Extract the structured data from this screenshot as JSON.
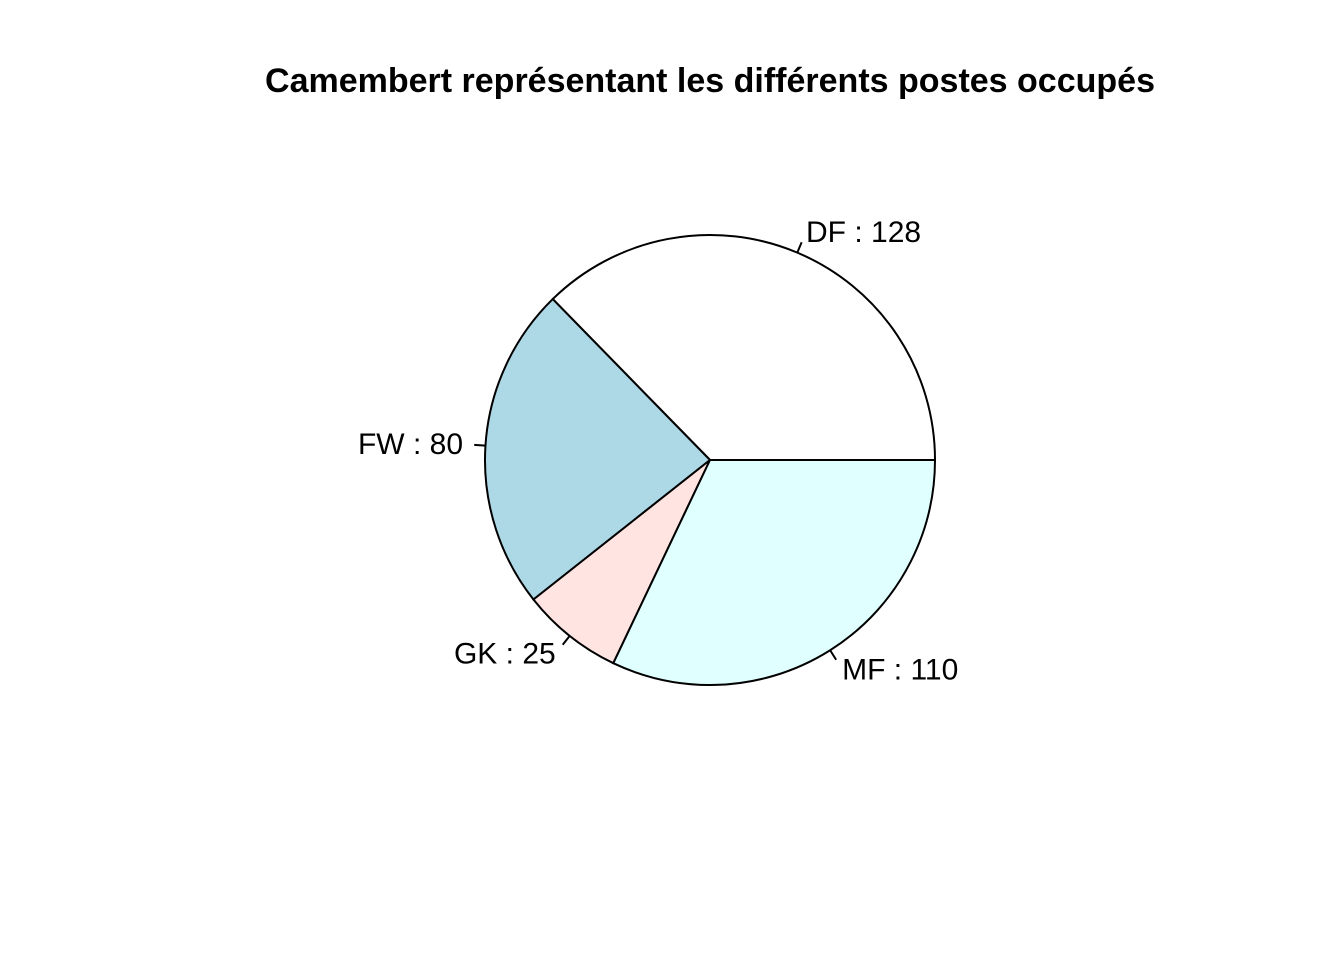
{
  "chart_data": {
    "type": "pie",
    "title": "Camembert représentant les différents postes occupés",
    "slices": [
      {
        "category": "DF",
        "value": 128,
        "label": "DF : 128",
        "color": "#FFFFFF"
      },
      {
        "category": "FW",
        "value": 80,
        "label": "FW : 80",
        "color": "#ADD8E6"
      },
      {
        "category": "GK",
        "value": 25,
        "label": "GK : 25",
        "color": "#FFE4E1"
      },
      {
        "category": "MF",
        "value": 110,
        "label": "MF : 110",
        "color": "#E0FFFF"
      }
    ],
    "start_angle": "3 o'clock",
    "direction": "counterclockwise"
  }
}
